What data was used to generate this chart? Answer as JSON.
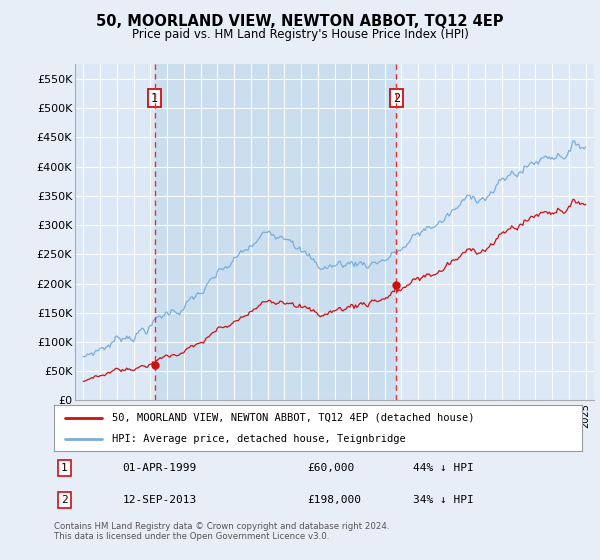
{
  "title": "50, MOORLAND VIEW, NEWTON ABBOT, TQ12 4EP",
  "subtitle": "Price paid vs. HM Land Registry's House Price Index (HPI)",
  "legend_line1": "50, MOORLAND VIEW, NEWTON ABBOT, TQ12 4EP (detached house)",
  "legend_line2": "HPI: Average price, detached house, Teignbridge",
  "annotation1_date": "01-APR-1999",
  "annotation1_price": "£60,000",
  "annotation1_hpi": "44% ↓ HPI",
  "annotation2_date": "12-SEP-2013",
  "annotation2_price": "£198,000",
  "annotation2_hpi": "34% ↓ HPI",
  "footnote": "Contains HM Land Registry data © Crown copyright and database right 2024.\nThis data is licensed under the Open Government Licence v3.0.",
  "sale1_x": 1999.25,
  "sale1_y": 60000,
  "sale2_x": 2013.7,
  "sale2_y": 198000,
  "hpi_color": "#7aaddc",
  "price_color": "#cc1111",
  "background_color": "#e8eef8",
  "plot_bg": "#dce8f5",
  "highlight_bg": "#c8ddef",
  "ylim": [
    0,
    575000
  ],
  "xlim": [
    1994.5,
    2025.5
  ],
  "yticks": [
    0,
    50000,
    100000,
    150000,
    200000,
    250000,
    300000,
    350000,
    400000,
    450000,
    500000,
    550000
  ],
  "ytick_labels": [
    "£0",
    "£50K",
    "£100K",
    "£150K",
    "£200K",
    "£250K",
    "£300K",
    "£350K",
    "£400K",
    "£450K",
    "£500K",
    "£550K"
  ],
  "xticks": [
    1995,
    1996,
    1997,
    1998,
    1999,
    2000,
    2001,
    2002,
    2003,
    2004,
    2005,
    2006,
    2007,
    2008,
    2009,
    2010,
    2011,
    2012,
    2013,
    2014,
    2015,
    2016,
    2017,
    2018,
    2019,
    2020,
    2021,
    2022,
    2023,
    2024,
    2025
  ]
}
